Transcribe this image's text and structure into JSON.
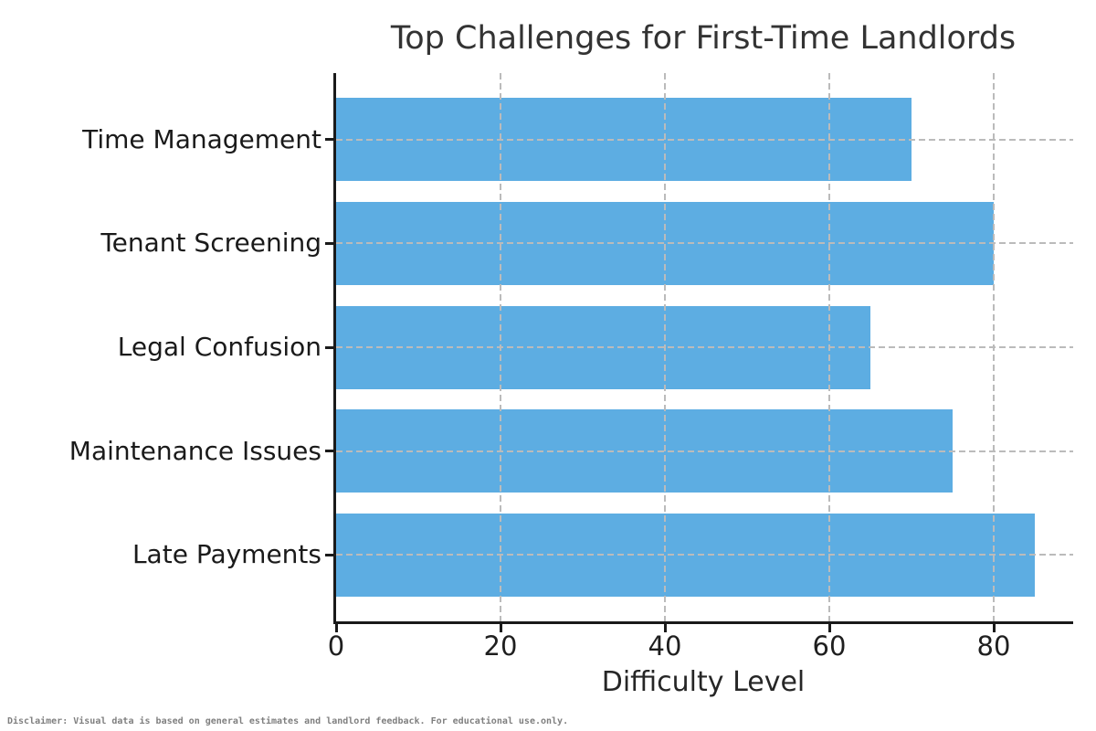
{
  "figure": {
    "disclaimer": "Disclaimer: Visual data is based on general estimates and landlord feedback. For educational use.only."
  },
  "chart_data": {
    "type": "bar",
    "orientation": "horizontal",
    "title": "Top Challenges for First-Time Landlords",
    "categories": [
      "Time Management",
      "Tenant Screening",
      "Legal Confusion",
      "Maintenance Issues",
      "Late Payments"
    ],
    "values": [
      70,
      80,
      65,
      75,
      85
    ],
    "xlabel": "Difficulty Level",
    "ylabel": "",
    "xticks": [
      0,
      20,
      40,
      60,
      80
    ],
    "xlim": [
      0,
      89.3
    ],
    "grid": "dashed, both axes, drawn above bars",
    "legend": "none",
    "bar_color": "#5dade2",
    "grid_color": "#bbbbbb",
    "axis_color": "#1a1a1a",
    "title_color": "#333333"
  }
}
